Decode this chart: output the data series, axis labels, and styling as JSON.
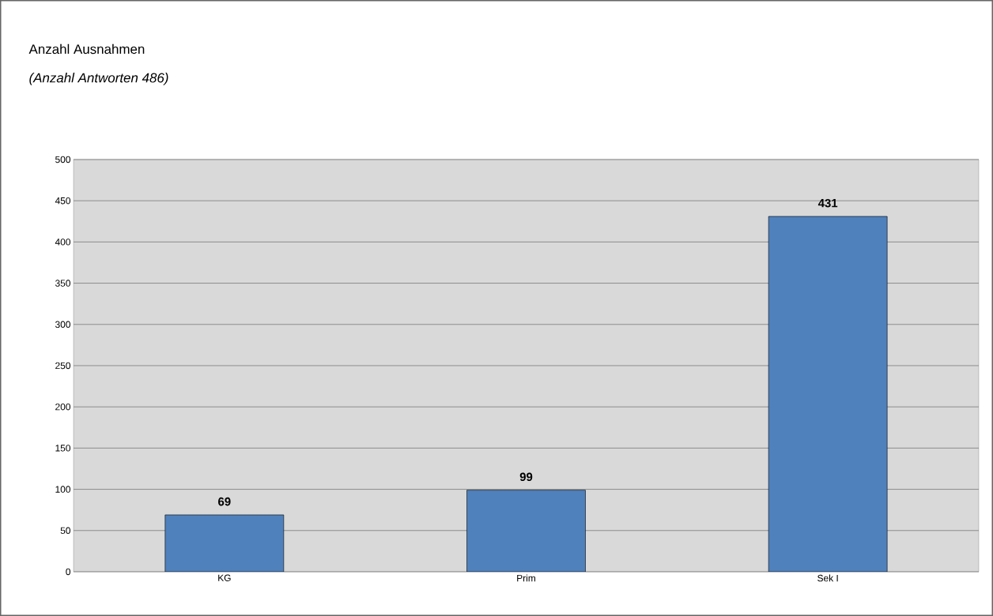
{
  "chart_data": {
    "type": "bar",
    "title": "Anzahl Ausnahmen",
    "subtitle": "(Anzahl Antworten 486)",
    "categories": [
      "KG",
      "Prim",
      "Sek I"
    ],
    "values": [
      69,
      99,
      431
    ],
    "color": "#4f81bd",
    "ylim": [
      0,
      500
    ],
    "yticks": [
      0,
      50,
      100,
      150,
      200,
      250,
      300,
      350,
      400,
      450,
      500
    ],
    "grid": "y",
    "data_labels": true
  }
}
